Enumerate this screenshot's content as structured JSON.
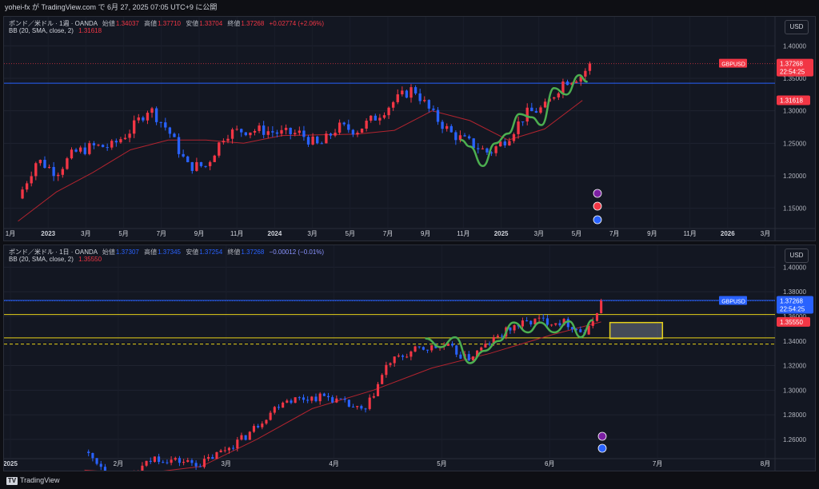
{
  "header": {
    "publisher": "yohei-fx が TradingView.com で 6月 27, 2025 07:05 UTC+9 に公開"
  },
  "footer": {
    "logo_text": "TradingView"
  },
  "colors": {
    "up": "#f23645",
    "down": "#2962ff",
    "bb": "#b2242f",
    "wave": "#4caf50",
    "yellow": "#e6d11a",
    "blueline": "#2962ff",
    "background": "#131722"
  },
  "chart_data": [
    {
      "type": "candlestick",
      "symbol": "ポンド／米ドル · 1週 · OANDA",
      "ohlc_labels": [
        "始値",
        "高値",
        "安値",
        "終値"
      ],
      "ohlc": [
        "1.34037",
        "1.37710",
        "1.33704",
        "1.37268"
      ],
      "change": "+0.02774 (+2.06%)",
      "indicator": "BB (20, SMA, close, 2)",
      "indicator_value": "1.31618",
      "currency": "USD",
      "ylim": [
        1.12,
        1.43
      ],
      "y_ticks": [
        "1.40000",
        "1.35000",
        "1.30000",
        "1.25000",
        "1.20000",
        "1.15000"
      ],
      "x_ticks": [
        "1月",
        "2023",
        "3月",
        "5月",
        "7月",
        "9月",
        "11月",
        "2024",
        "3月",
        "5月",
        "7月",
        "9月",
        "11月",
        "2025",
        "3月",
        "5月",
        "7月",
        "9月",
        "11月",
        "2026",
        "3月"
      ],
      "price_tag": {
        "label": "GBPUSD",
        "value": "1.37268",
        "countdown": "22:54:25"
      },
      "bb_tag": "1.31618",
      "horizontal_line": 1.3425,
      "price": [
        [
          "2022-12",
          1.165
        ],
        [
          "2023-01",
          1.225
        ],
        [
          "2023-02",
          1.205
        ],
        [
          "2023-03",
          1.235
        ],
        [
          "2023-04",
          1.245
        ],
        [
          "2023-05",
          1.245
        ],
        [
          "2023-06",
          1.27
        ],
        [
          "2023-07",
          1.305
        ],
        [
          "2023-08",
          1.27
        ],
        [
          "2023-09",
          1.215
        ],
        [
          "2023-10",
          1.215
        ],
        [
          "2023-11",
          1.265
        ],
        [
          "2023-12",
          1.27
        ],
        [
          "2024-01",
          1.27
        ],
        [
          "2024-02",
          1.265
        ],
        [
          "2024-03",
          1.265
        ],
        [
          "2024-04",
          1.245
        ],
        [
          "2024-05",
          1.275
        ],
        [
          "2024-06",
          1.27
        ],
        [
          "2024-07",
          1.29
        ],
        [
          "2024-08",
          1.315
        ],
        [
          "2024-09",
          1.335
        ],
        [
          "2024-10",
          1.295
        ],
        [
          "2024-11",
          1.265
        ],
        [
          "2024-12",
          1.25
        ],
        [
          "2025-01",
          1.235
        ],
        [
          "2025-02",
          1.26
        ],
        [
          "2025-03",
          1.295
        ],
        [
          "2025-04",
          1.305
        ],
        [
          "2025-05",
          1.345
        ],
        [
          "2025-06",
          1.355
        ],
        [
          "2025-06-27",
          1.373
        ]
      ],
      "bb_basis": [
        [
          "2022-12",
          1.13
        ],
        [
          "2023-02",
          1.175
        ],
        [
          "2023-04",
          1.205
        ],
        [
          "2023-06",
          1.24
        ],
        [
          "2023-08",
          1.255
        ],
        [
          "2023-10",
          1.255
        ],
        [
          "2023-12",
          1.25
        ],
        [
          "2024-02",
          1.262
        ],
        [
          "2024-04",
          1.263
        ],
        [
          "2024-06",
          1.264
        ],
        [
          "2024-08",
          1.27
        ],
        [
          "2024-10",
          1.3
        ],
        [
          "2024-12",
          1.285
        ],
        [
          "2025-02",
          1.255
        ],
        [
          "2025-04",
          1.272
        ],
        [
          "2025-06",
          1.316
        ]
      ],
      "wave": [
        [
          "2024-12-01",
          1.255
        ],
        [
          "2024-12-15",
          1.245
        ],
        [
          "2025-01-05",
          1.215
        ],
        [
          "2025-01-25",
          1.25
        ],
        [
          "2025-02-15",
          1.265
        ],
        [
          "2025-03-05",
          1.295
        ],
        [
          "2025-03-25",
          1.29
        ],
        [
          "2025-04-10",
          1.278
        ],
        [
          "2025-04-30",
          1.335
        ],
        [
          "2025-05-20",
          1.325
        ],
        [
          "2025-06-10",
          1.355
        ],
        [
          "2025-06-22",
          1.345
        ]
      ]
    },
    {
      "type": "candlestick",
      "symbol": "ポンド／米ドル · 1日 · OANDA",
      "ohlc_labels": [
        "始値",
        "高値",
        "安値",
        "終値"
      ],
      "ohlc": [
        "1.37307",
        "1.37345",
        "1.37254",
        "1.37268"
      ],
      "change": "−0.00012 (−0.01%)",
      "indicator": "BB (20, SMA, close, 2)",
      "indicator_value": "1.35550",
      "currency": "USD",
      "ylim": [
        1.245,
        1.41
      ],
      "y_ticks": [
        "1.40000",
        "1.38000",
        "1.36000",
        "1.34000",
        "1.32000",
        "1.30000",
        "1.28000",
        "1.26000"
      ],
      "x_ticks": [
        "2025",
        "2月",
        "3月",
        "4月",
        "5月",
        "6月",
        "7月",
        "8月"
      ],
      "price_tag": {
        "label": "GBPUSD",
        "value": "1.37268",
        "countdown": "22:54:25"
      },
      "bb_tag": "1.35550",
      "horizontal_line": 1.373,
      "yellow_solid_lines": [
        1.3615,
        1.3425
      ],
      "yellow_dashed_line": 1.3375,
      "box": {
        "x0": "2025-06-30",
        "x1": "2025-07-18",
        "y0": 1.342,
        "y1": 1.355
      },
      "price": [
        [
          "2025-01-01",
          1.25
        ],
        [
          "2025-01-14",
          1.225
        ],
        [
          "2025-01-25",
          1.245
        ],
        [
          "2025-02-10",
          1.24
        ],
        [
          "2025-02-25",
          1.262
        ],
        [
          "2025-03-10",
          1.292
        ],
        [
          "2025-03-25",
          1.295
        ],
        [
          "2025-04-07",
          1.282
        ],
        [
          "2025-04-15",
          1.322
        ],
        [
          "2025-04-25",
          1.333
        ],
        [
          "2025-05-05",
          1.336
        ],
        [
          "2025-05-12",
          1.325
        ],
        [
          "2025-05-20",
          1.339
        ],
        [
          "2025-05-28",
          1.352
        ],
        [
          "2025-06-05",
          1.357
        ],
        [
          "2025-06-15",
          1.355
        ],
        [
          "2025-06-22",
          1.345
        ],
        [
          "2025-06-27",
          1.373
        ]
      ],
      "bb_basis": [
        [
          "2025-01-01",
          1.235
        ],
        [
          "2025-01-20",
          1.232
        ],
        [
          "2025-02-10",
          1.238
        ],
        [
          "2025-03-01",
          1.26
        ],
        [
          "2025-03-20",
          1.285
        ],
        [
          "2025-04-10",
          1.3
        ],
        [
          "2025-04-30",
          1.318
        ],
        [
          "2025-05-20",
          1.33
        ],
        [
          "2025-06-10",
          1.345
        ],
        [
          "2025-06-27",
          1.3555
        ]
      ],
      "wave": [
        [
          "2025-04-28",
          1.342
        ],
        [
          "2025-05-03",
          1.335
        ],
        [
          "2025-05-08",
          1.343
        ],
        [
          "2025-05-13",
          1.322
        ],
        [
          "2025-05-18",
          1.332
        ],
        [
          "2025-05-23",
          1.34
        ],
        [
          "2025-05-28",
          1.355
        ],
        [
          "2025-06-02",
          1.347
        ],
        [
          "2025-06-06",
          1.355
        ],
        [
          "2025-06-11",
          1.347
        ],
        [
          "2025-06-16",
          1.356
        ],
        [
          "2025-06-20",
          1.343
        ],
        [
          "2025-06-24",
          1.357
        ]
      ]
    }
  ]
}
